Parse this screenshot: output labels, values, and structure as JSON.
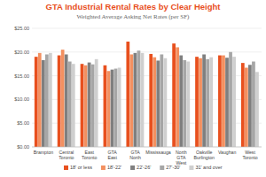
{
  "chart_data": {
    "type": "bar",
    "title": "GTA Industrial Rental Rates by Clear Height",
    "subtitle": "Weighted Average Asking Net Rates (per SF)",
    "categories": [
      "Brampton",
      "Central Toronto",
      "East Toronto",
      "GTA East",
      "GTA North",
      "Mississauga",
      "North GTA West",
      "Oakville Burlington",
      "Vaughan",
      "West Toronto"
    ],
    "series": [
      {
        "name": "18' or less",
        "color": "#e8501e",
        "values": [
          19.0,
          19.3,
          17.5,
          17.2,
          22.2,
          19.6,
          21.8,
          19.0,
          19.3,
          17.7
        ]
      },
      {
        "name": "18'-22'",
        "color": "#f39060",
        "values": [
          19.8,
          20.5,
          17.2,
          16.0,
          19.5,
          18.9,
          21.0,
          18.7,
          19.3,
          16.7
        ]
      },
      {
        "name": "22'-26'",
        "color": "#7f7f7f",
        "values": [
          18.3,
          19.5,
          17.8,
          16.3,
          19.8,
          18.2,
          19.3,
          19.5,
          18.8,
          17.3
        ]
      },
      {
        "name": "27'-30'",
        "color": "#a6a6a6",
        "values": [
          19.5,
          18.0,
          17.4,
          16.5,
          20.3,
          19.5,
          18.3,
          18.5,
          20.0,
          18.0
        ]
      },
      {
        "name": "31' and over",
        "color": "#cfcfcf",
        "values": [
          19.8,
          17.5,
          18.5,
          16.7,
          19.8,
          18.7,
          18.0,
          18.9,
          19.0,
          15.8
        ]
      }
    ],
    "ylim": [
      0,
      25
    ],
    "yticks": [
      {
        "value": 0,
        "label": "$0.00"
      },
      {
        "value": 5,
        "label": "$5.00"
      },
      {
        "value": 10,
        "label": "$10.00"
      },
      {
        "value": 15,
        "label": "$15.00"
      },
      {
        "value": 20,
        "label": "$20.00"
      },
      {
        "value": 25,
        "label": "$25.00"
      }
    ],
    "grid": true,
    "legend": "bottom"
  }
}
